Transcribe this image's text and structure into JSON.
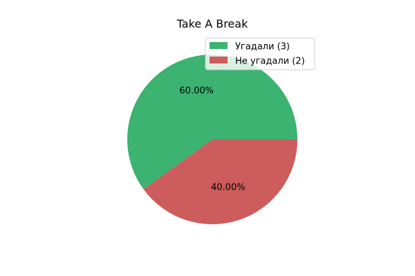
{
  "chart_data": {
    "type": "pie",
    "title": "Take A Break",
    "labels": [
      "Угадали (3)",
      "Не угадали (2)"
    ],
    "values": [
      3,
      2
    ],
    "percent_labels": [
      "60.00%",
      "40.00%"
    ],
    "colors": [
      "#3cb371",
      "#cd5c5c"
    ],
    "start_angle_deg": 0,
    "direction": "counterclockwise",
    "legend_position": "upper-right"
  }
}
